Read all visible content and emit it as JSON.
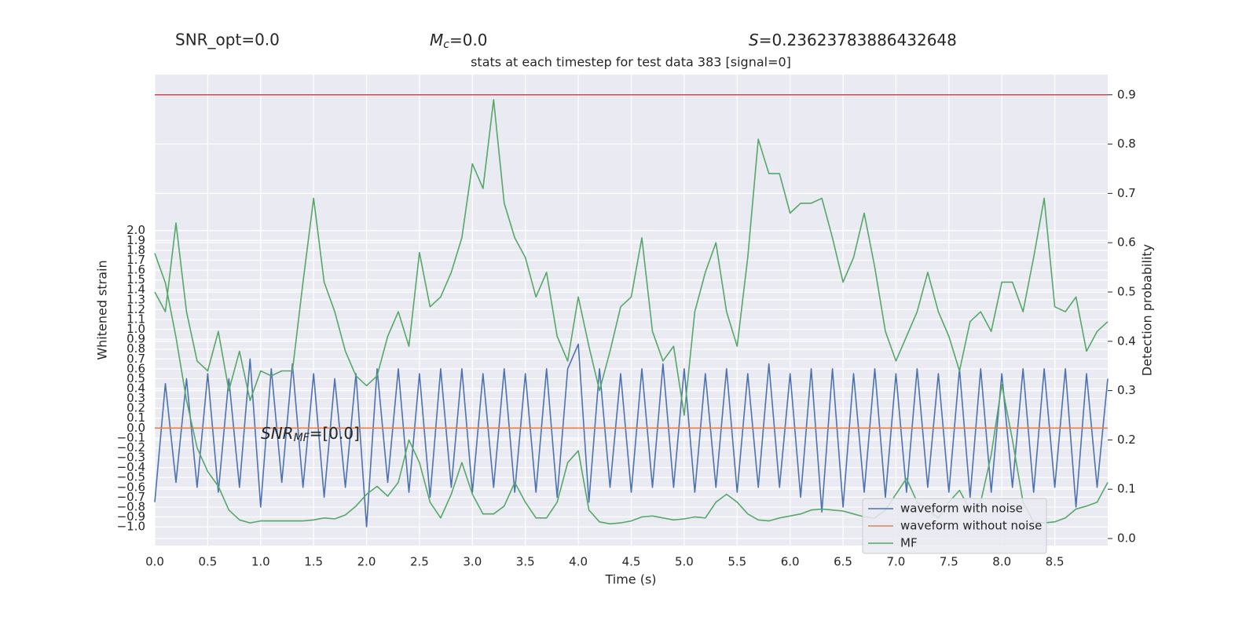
{
  "chart_data": {
    "type": "line",
    "title": "stats at each timestep for test data 383 [signal=0]",
    "stats": {
      "snr_opt": "SNR_opt=0.0",
      "mc": {
        "base": "M",
        "sub": "c",
        "rest": "=0.0"
      },
      "s": {
        "symbol": "S",
        "rest": "=0.23623783886432648"
      }
    },
    "annotation": {
      "base": "SNR",
      "sub": "MF",
      "rest": "=[0.0]"
    },
    "xlabel": "Time (s)",
    "ylabel": "Whitened strain",
    "y2label": "Detection probability",
    "grid": true,
    "legend": "lower right",
    "xlim": [
      0,
      9.0
    ],
    "ylim": [
      -1.19,
      3.58
    ],
    "y2lim": [
      -0.0143,
      0.941
    ],
    "xticks": [
      {
        "value": 0,
        "label": "0.0"
      },
      {
        "value": 0.5,
        "label": "0.5"
      },
      {
        "value": 1,
        "label": "1.0"
      },
      {
        "value": 1.5,
        "label": "1.5"
      },
      {
        "value": 2,
        "label": "2.0"
      },
      {
        "value": 2.5,
        "label": "2.5"
      },
      {
        "value": 3,
        "label": "3.0"
      },
      {
        "value": 3.5,
        "label": "3.5"
      },
      {
        "value": 4,
        "label": "4.0"
      },
      {
        "value": 4.5,
        "label": "4.5"
      },
      {
        "value": 5,
        "label": "5.0"
      },
      {
        "value": 5.5,
        "label": "5.5"
      },
      {
        "value": 6,
        "label": "6.0"
      },
      {
        "value": 6.5,
        "label": "6.5"
      },
      {
        "value": 7,
        "label": "7.0"
      },
      {
        "value": 7.5,
        "label": "7.5"
      },
      {
        "value": 8,
        "label": "8.0"
      },
      {
        "value": 8.5,
        "label": "8.5"
      }
    ],
    "yticks": [
      {
        "value": -1,
        "label": "−1.0"
      },
      {
        "value": -0.9,
        "label": "−0.9"
      },
      {
        "value": -0.8,
        "label": "−0.8"
      },
      {
        "value": -0.7,
        "label": "−0.7"
      },
      {
        "value": -0.6,
        "label": "−0.6"
      },
      {
        "value": -0.5,
        "label": "−0.5"
      },
      {
        "value": -0.4,
        "label": "−0.4"
      },
      {
        "value": -0.3,
        "label": "−0.3"
      },
      {
        "value": -0.2,
        "label": "−0.2"
      },
      {
        "value": -0.1,
        "label": "−0.1"
      },
      {
        "value": 0,
        "label": "0.0"
      },
      {
        "value": 0.1,
        "label": "0.1"
      },
      {
        "value": 0.2,
        "label": "0.2"
      },
      {
        "value": 0.3,
        "label": "0.3"
      },
      {
        "value": 0.4,
        "label": "0.4"
      },
      {
        "value": 0.5,
        "label": "0.5"
      },
      {
        "value": 0.6,
        "label": "0.6"
      },
      {
        "value": 0.7,
        "label": "0.7"
      },
      {
        "value": 0.8,
        "label": "0.8"
      },
      {
        "value": 0.9,
        "label": "0.9"
      },
      {
        "value": 1,
        "label": "1.0"
      },
      {
        "value": 1.1,
        "label": "1.1"
      },
      {
        "value": 1.2,
        "label": "1.2"
      },
      {
        "value": 1.3,
        "label": "1.3"
      },
      {
        "value": 1.4,
        "label": "1.4"
      },
      {
        "value": 1.5,
        "label": "1.5"
      },
      {
        "value": 1.6,
        "label": "1.6"
      },
      {
        "value": 1.7,
        "label": "1.7"
      },
      {
        "value": 1.8,
        "label": "1.8"
      },
      {
        "value": 1.9,
        "label": "1.9"
      },
      {
        "value": 2,
        "label": "2.0"
      }
    ],
    "y2ticks": [
      {
        "value": 0,
        "label": "0.0"
      },
      {
        "value": 0.1,
        "label": "0.1"
      },
      {
        "value": 0.2,
        "label": "0.2"
      },
      {
        "value": 0.3,
        "label": "0.3"
      },
      {
        "value": 0.4,
        "label": "0.4"
      },
      {
        "value": 0.5,
        "label": "0.5"
      },
      {
        "value": 0.6,
        "label": "0.6"
      },
      {
        "value": 0.7,
        "label": "0.7"
      },
      {
        "value": 0.8,
        "label": "0.8"
      },
      {
        "value": 0.9,
        "label": "0.9"
      }
    ],
    "hlines": [
      {
        "value": 0.9,
        "axis": "y2",
        "color": "#c44e52"
      }
    ],
    "x": [
      0,
      0.1,
      0.2,
      0.3,
      0.4,
      0.5,
      0.6,
      0.7,
      0.8,
      0.9,
      1,
      1.1,
      1.2,
      1.3,
      1.4,
      1.5,
      1.6,
      1.7,
      1.8,
      1.9,
      2,
      2.1,
      2.2,
      2.3,
      2.4,
      2.5,
      2.6,
      2.7,
      2.8,
      2.9,
      3,
      3.1,
      3.2,
      3.3,
      3.4,
      3.5,
      3.6,
      3.7,
      3.8,
      3.9,
      4,
      4.1,
      4.2,
      4.3,
      4.4,
      4.5,
      4.6,
      4.7,
      4.8,
      4.9,
      5,
      5.1,
      5.2,
      5.3,
      5.4,
      5.5,
      5.6,
      5.7,
      5.8,
      5.9,
      6,
      6.1,
      6.2,
      6.3,
      6.4,
      6.5,
      6.6,
      6.7,
      6.8,
      6.9,
      7,
      7.1,
      7.2,
      7.3,
      7.4,
      7.5,
      7.6,
      7.7,
      7.8,
      7.9,
      8,
      8.1,
      8.2,
      8.3,
      8.4,
      8.5,
      8.6,
      8.7,
      8.8,
      8.9,
      9
    ],
    "series": [
      {
        "name": "waveform with noise",
        "color": "#4c72b0",
        "axis": "y",
        "values": [
          -0.75,
          0.45,
          -0.55,
          0.5,
          -0.6,
          0.55,
          -0.65,
          0.5,
          -0.6,
          0.7,
          -0.8,
          0.6,
          -0.55,
          0.65,
          -0.6,
          0.55,
          -0.7,
          0.5,
          -0.6,
          0.55,
          -1.0,
          0.6,
          -0.55,
          0.6,
          -0.65,
          0.55,
          -0.7,
          0.6,
          -0.6,
          0.6,
          -0.65,
          0.55,
          -0.6,
          0.6,
          -0.65,
          0.55,
          -0.65,
          0.6,
          -0.7,
          0.6,
          0.85,
          -0.75,
          0.6,
          -0.6,
          0.55,
          -0.65,
          0.6,
          -0.6,
          0.65,
          -0.6,
          0.6,
          -0.65,
          0.55,
          -0.6,
          0.6,
          -0.65,
          0.55,
          -0.6,
          0.65,
          -0.6,
          0.55,
          -0.7,
          0.6,
          -0.85,
          0.6,
          -0.8,
          0.55,
          -0.65,
          0.6,
          -0.7,
          0.55,
          -0.65,
          0.6,
          -0.6,
          0.55,
          -0.65,
          0.6,
          -0.7,
          0.6,
          -0.65,
          0.55,
          -0.6,
          0.6,
          -0.65,
          0.6,
          -0.6,
          0.6,
          -0.8,
          0.55,
          -0.6,
          0.5
        ]
      },
      {
        "name": "waveform without noise",
        "color": "#dd8452",
        "axis": "y",
        "values": [
          0,
          0,
          0,
          0,
          0,
          0,
          0,
          0,
          0,
          0,
          0,
          0,
          0,
          0,
          0,
          0,
          0,
          0,
          0,
          0,
          0,
          0,
          0,
          0,
          0,
          0,
          0,
          0,
          0,
          0,
          0,
          0,
          0,
          0,
          0,
          0,
          0,
          0,
          0,
          0,
          0,
          0,
          0,
          0,
          0,
          0,
          0,
          0,
          0,
          0,
          0,
          0,
          0,
          0,
          0,
          0,
          0,
          0,
          0,
          0,
          0,
          0,
          0,
          0,
          0,
          0,
          0,
          0,
          0,
          0,
          0,
          0,
          0,
          0,
          0,
          0,
          0,
          0,
          0,
          0,
          0,
          0,
          0,
          0,
          0,
          0,
          0,
          0,
          0,
          0,
          0
        ]
      },
      {
        "name": "MF",
        "color": "#55a868",
        "axis": "y",
        "values": [
          1.77,
          1.47,
          0.92,
          0.28,
          -0.2,
          -0.44,
          -0.59,
          -0.83,
          -0.93,
          -0.96,
          -0.94,
          -0.94,
          -0.94,
          -0.94,
          -0.94,
          -0.93,
          -0.91,
          -0.92,
          -0.88,
          -0.79,
          -0.67,
          -0.59,
          -0.69,
          -0.55,
          -0.12,
          -0.35,
          -0.75,
          -0.91,
          -0.67,
          -0.35,
          -0.67,
          -0.87,
          -0.87,
          -0.79,
          -0.55,
          -0.75,
          -0.91,
          -0.91,
          -0.75,
          -0.35,
          -0.23,
          -0.83,
          -0.95,
          -0.97,
          -0.96,
          -0.94,
          -0.9,
          -0.89,
          -0.91,
          -0.93,
          -0.92,
          -0.9,
          -0.91,
          -0.75,
          -0.67,
          -0.75,
          -0.87,
          -0.93,
          -0.94,
          -0.91,
          -0.89,
          -0.87,
          -0.83,
          -0.82,
          -0.83,
          -0.84,
          -0.87,
          -0.9,
          -0.91,
          -0.83,
          -0.67,
          -0.51,
          -0.75,
          -0.83,
          -0.91,
          -0.75,
          -0.63,
          -0.83,
          -0.75,
          -0.27,
          0.44,
          -0.12,
          -0.75,
          -0.95,
          -0.96,
          -0.95,
          -0.91,
          -0.82,
          -0.79,
          -0.75,
          -0.55
        ]
      },
      {
        "color": "#55a868",
        "axis": "y2",
        "values": [
          0.5,
          0.46,
          0.64,
          0.46,
          0.36,
          0.34,
          0.42,
          0.3,
          0.38,
          0.28,
          0.34,
          0.33,
          0.34,
          0.34,
          0.52,
          0.69,
          0.52,
          0.46,
          0.38,
          0.33,
          0.31,
          0.33,
          0.41,
          0.46,
          0.39,
          0.58,
          0.47,
          0.49,
          0.54,
          0.61,
          0.76,
          0.71,
          0.89,
          0.68,
          0.61,
          0.57,
          0.49,
          0.54,
          0.41,
          0.36,
          0.49,
          0.39,
          0.3,
          0.38,
          0.47,
          0.49,
          0.61,
          0.42,
          0.36,
          0.39,
          0.25,
          0.46,
          0.54,
          0.6,
          0.46,
          0.39,
          0.57,
          0.81,
          0.74,
          0.74,
          0.66,
          0.68,
          0.68,
          0.69,
          0.61,
          0.52,
          0.57,
          0.66,
          0.55,
          0.42,
          0.36,
          0.41,
          0.46,
          0.54,
          0.46,
          0.41,
          0.34,
          0.44,
          0.46,
          0.42,
          0.52,
          0.52,
          0.46,
          0.57,
          0.69,
          0.47,
          0.46,
          0.49,
          0.38,
          0.42,
          0.44
        ]
      }
    ]
  }
}
